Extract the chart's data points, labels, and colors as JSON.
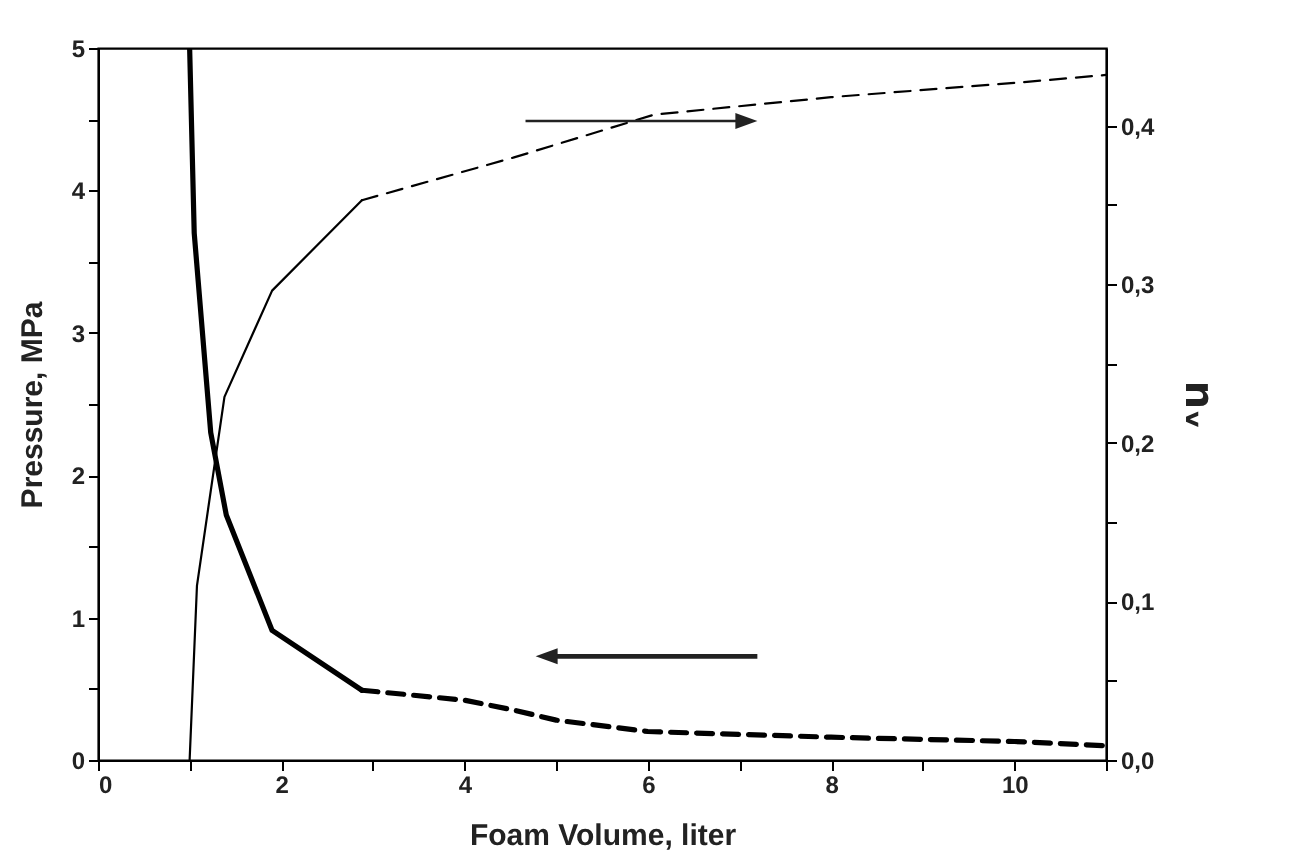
{
  "chart_data": {
    "type": "line",
    "xlabel": "Foam Volume, liter",
    "ylabel": "Pressure, MPa",
    "y2label": "nᵥ",
    "xlim": [
      0,
      11
    ],
    "xticks": [
      0,
      {
        "value": 1,
        "label": null
      },
      2,
      {
        "value": 3,
        "label": null
      },
      4,
      {
        "value": 5,
        "label": null
      },
      6,
      {
        "value": 7,
        "label": null
      },
      8,
      {
        "value": 9,
        "label": null
      },
      10,
      {
        "value": 11,
        "label": null
      }
    ],
    "ylim": [
      0,
      5
    ],
    "yticks": [
      0,
      {
        "value": 0.5,
        "label": null
      },
      1,
      {
        "value": 1.5,
        "label": null
      },
      2,
      {
        "value": 2.5,
        "label": null
      },
      3,
      {
        "value": 3.5,
        "label": null
      },
      4,
      {
        "value": 4.5,
        "label": null
      },
      5
    ],
    "y2lim": [
      0,
      0.449
    ],
    "y2ticks": [
      {
        "value": 0,
        "label": "0,0"
      },
      {
        "value": 0.05,
        "label": null
      },
      {
        "value": 0.1,
        "label": "0,1"
      },
      {
        "value": 0.15,
        "label": null
      },
      {
        "value": 0.2,
        "label": "0,2"
      },
      {
        "value": 0.25,
        "label": null
      },
      {
        "value": 0.3,
        "label": "0,3"
      },
      {
        "value": 0.35,
        "label": null
      },
      {
        "value": 0.4,
        "label": "0,4"
      }
    ],
    "grid": false,
    "marker": "none",
    "series": [
      {
        "color": "#000000",
        "axis": "y",
        "line_style": "solid",
        "x": [
          1.0,
          1.05,
          1.23,
          1.4,
          1.9,
          2.88
        ],
        "values": [
          5,
          3.7,
          2.3,
          1.72,
          0.91,
          0.49
        ]
      },
      {
        "color": "#000000",
        "axis": "y",
        "line_style": "dashed",
        "x": [
          2.88,
          4,
          4.54,
          5,
          6,
          8,
          10,
          11
        ],
        "values": [
          0.49,
          0.42,
          0.35,
          0.28,
          0.2,
          0.16,
          0.13,
          0.1
        ]
      },
      {
        "color": "#000000",
        "axis": "y2",
        "line_style": "solid",
        "x": [
          1.0,
          1.08,
          1.38,
          1.9,
          2.88
        ],
        "values": [
          0,
          0.11,
          0.229,
          0.296,
          0.353
        ]
      },
      {
        "color": "#000000",
        "axis": "y2",
        "line_style": "dashed",
        "x": [
          2.88,
          4.54,
          6.07,
          8,
          10,
          11
        ],
        "values": [
          0.353,
          0.38,
          0.407,
          0.418,
          0.427,
          0.432
        ]
      }
    ]
  }
}
